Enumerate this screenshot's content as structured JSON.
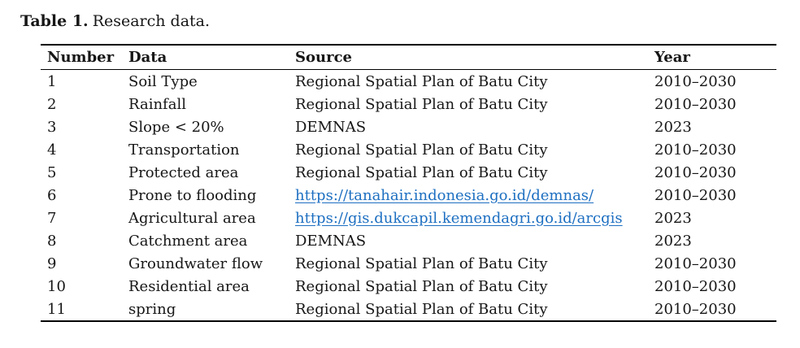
{
  "page": {
    "background": "#ffffff",
    "text_color": "#161616",
    "rule_color": "#000000",
    "link_color": "#1d6fc1"
  },
  "caption": {
    "label": "Table 1.",
    "text": "Research data."
  },
  "table": {
    "columns": [
      "Number",
      "Data",
      "Source",
      "Year"
    ],
    "rows": [
      {
        "number": "1",
        "data": "Soil Type",
        "source": "Regional Spatial Plan of Batu City",
        "source_is_link": false,
        "year": "2010–2030"
      },
      {
        "number": "2",
        "data": "Rainfall",
        "source": "Regional Spatial Plan of Batu City",
        "source_is_link": false,
        "year": "2010–2030"
      },
      {
        "number": "3",
        "data": "Slope < 20%",
        "source": "DEMNAS",
        "source_is_link": false,
        "year": "2023"
      },
      {
        "number": "4",
        "data": "Transportation",
        "source": "Regional Spatial Plan of Batu City",
        "source_is_link": false,
        "year": "2010–2030"
      },
      {
        "number": "5",
        "data": "Protected area",
        "source": "Regional Spatial Plan of Batu City",
        "source_is_link": false,
        "year": "2010–2030"
      },
      {
        "number": "6",
        "data": "Prone to flooding",
        "source": "https://tanahair.indonesia.go.id/demnas/",
        "source_is_link": true,
        "year": "2010–2030"
      },
      {
        "number": "7",
        "data": "Agricultural area",
        "source": "https://gis.dukcapil.kemendagri.go.id/arcgis",
        "source_is_link": true,
        "year": "2023"
      },
      {
        "number": "8",
        "data": "Catchment area",
        "source": "DEMNAS",
        "source_is_link": false,
        "year": "2023"
      },
      {
        "number": "9",
        "data": "Groundwater flow",
        "source": "Regional Spatial Plan of Batu City",
        "source_is_link": false,
        "year": "2010–2030"
      },
      {
        "number": "10",
        "data": "Residential area",
        "source": "Regional Spatial Plan of Batu City",
        "source_is_link": false,
        "year": "2010–2030"
      },
      {
        "number": "11",
        "data": "spring",
        "source": "Regional Spatial Plan of Batu City",
        "source_is_link": false,
        "year": "2010–2030"
      }
    ]
  }
}
